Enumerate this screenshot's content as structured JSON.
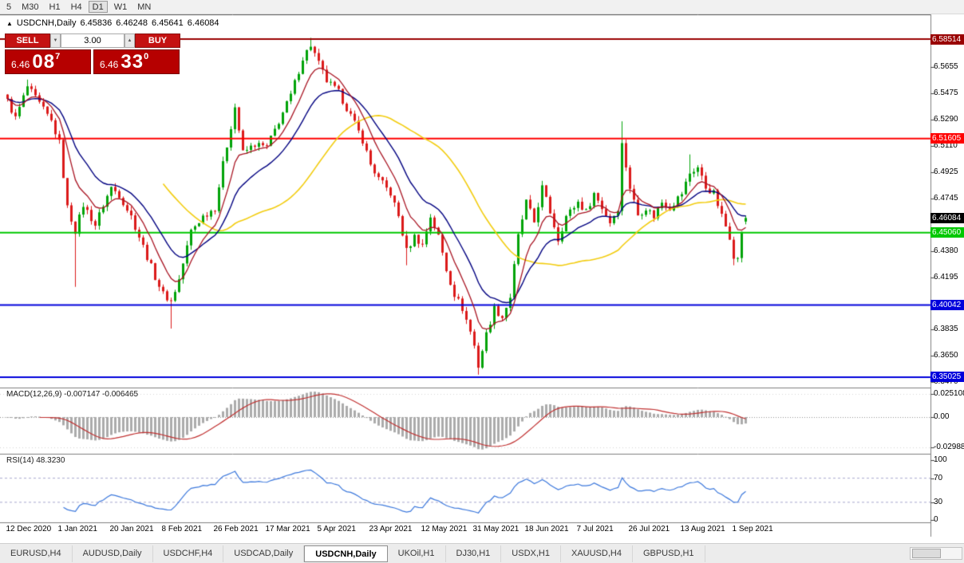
{
  "toolbar": {
    "timeframes": [
      "5",
      "M30",
      "H1",
      "H4",
      "D1",
      "W1",
      "MN"
    ],
    "active_timeframe": "D1"
  },
  "chart_header": {
    "collapse_icon": "▲",
    "symbol_label": "USDCNH,Daily",
    "open": "6.45836",
    "high": "6.46248",
    "low": "6.45641",
    "close": "6.46084"
  },
  "trade_panel": {
    "sell_label": "SELL",
    "buy_label": "BUY",
    "volume": "3.00",
    "spinner_down": "▼",
    "spinner_up": "▲",
    "sell_price": {
      "small": "6.46",
      "big": "08",
      "sup": "7"
    },
    "buy_price": {
      "small": "6.46",
      "big": "33",
      "sup": "0"
    }
  },
  "indicators": {
    "macd_label": "MACD(12,26,9) -0.007147 -0.006465",
    "macd_axis": [
      "0.025108",
      "0.00",
      "-0.029881"
    ],
    "rsi_label": "RSI(14) 48.3230",
    "rsi_axis": [
      "100",
      "70",
      "30",
      "0"
    ]
  },
  "date_axis": [
    "12 Dec 2020",
    "1 Jan 2021",
    "20 Jan 2021",
    "8 Feb 2021",
    "26 Feb 2021",
    "17 Mar 2021",
    "5 Apr 2021",
    "23 Apr 2021",
    "12 May 2021",
    "31 May 2021",
    "18 Jun 2021",
    "7 Jul 2021",
    "26 Jul 2021",
    "13 Aug 2021",
    "1 Sep 2021"
  ],
  "tabs": [
    {
      "label": "EURUSD,H4",
      "active": false
    },
    {
      "label": "AUDUSD,Daily",
      "active": false
    },
    {
      "label": "USDCHF,H4",
      "active": false
    },
    {
      "label": "USDCAD,Daily",
      "active": false
    },
    {
      "label": "USDCNH,Daily",
      "active": true
    },
    {
      "label": "UKOil,H1",
      "active": false
    },
    {
      "label": "DJ30,H1",
      "active": false
    },
    {
      "label": "USDX,H1",
      "active": false
    },
    {
      "label": "XAUUSD,H4",
      "active": false
    },
    {
      "label": "GBPUSD,H1",
      "active": false
    }
  ],
  "colors": {
    "up_candle": "#00A308",
    "down_candle": "#DB1A1A",
    "ma_fast": "#A81422",
    "ma_mid": "#000080",
    "ma_slow": "#F2CC0F",
    "macd_histogram": "#ABABAB",
    "macd_signal": "#C03030",
    "rsi_line": "#3C78DC",
    "rsi_level_dash": "#A6A6CE",
    "sell_buy_button": "#C41212",
    "price_box": "#B60000"
  },
  "chart_data": {
    "type": "candlestick",
    "symbol": "USDCNH",
    "timeframe": "Daily",
    "bar_count": 186,
    "bars_per_date_label": 13,
    "last_bar": {
      "open": 6.45836,
      "high": 6.46248,
      "low": 6.45641,
      "close": 6.46084
    },
    "price_anchors": [
      [
        0,
        6.542
      ],
      [
        2,
        6.53
      ],
      [
        5,
        6.552
      ],
      [
        8,
        6.54
      ],
      [
        11,
        6.528
      ],
      [
        13,
        6.513
      ],
      [
        15,
        6.468
      ],
      [
        17,
        6.452
      ],
      [
        19,
        6.47
      ],
      [
        22,
        6.456
      ],
      [
        24,
        6.47
      ],
      [
        26,
        6.482
      ],
      [
        28,
        6.477
      ],
      [
        31,
        6.462
      ],
      [
        34,
        6.441
      ],
      [
        37,
        6.42
      ],
      [
        39,
        6.408
      ],
      [
        41,
        6.403
      ],
      [
        43,
        6.418
      ],
      [
        46,
        6.452
      ],
      [
        49,
        6.462
      ],
      [
        52,
        6.468
      ],
      [
        54,
        6.498
      ],
      [
        57,
        6.538
      ],
      [
        59,
        6.506
      ],
      [
        62,
        6.512
      ],
      [
        65,
        6.51
      ],
      [
        68,
        6.528
      ],
      [
        71,
        6.546
      ],
      [
        74,
        6.572
      ],
      [
        76,
        6.581
      ],
      [
        78,
        6.568
      ],
      [
        80,
        6.556
      ],
      [
        83,
        6.548
      ],
      [
        86,
        6.532
      ],
      [
        89,
        6.515
      ],
      [
        91,
        6.498
      ],
      [
        93,
        6.488
      ],
      [
        96,
        6.478
      ],
      [
        98,
        6.462
      ],
      [
        100,
        6.438
      ],
      [
        102,
        6.448
      ],
      [
        104,
        6.442
      ],
      [
        106,
        6.462
      ],
      [
        108,
        6.448
      ],
      [
        110,
        6.425
      ],
      [
        112,
        6.408
      ],
      [
        114,
        6.398
      ],
      [
        116,
        6.382
      ],
      [
        117,
        6.372
      ],
      [
        118,
        6.358
      ],
      [
        120,
        6.38
      ],
      [
        122,
        6.398
      ],
      [
        124,
        6.392
      ],
      [
        126,
        6.406
      ],
      [
        128,
        6.448
      ],
      [
        130,
        6.472
      ],
      [
        132,
        6.458
      ],
      [
        134,
        6.482
      ],
      [
        136,
        6.465
      ],
      [
        138,
        6.446
      ],
      [
        140,
        6.462
      ],
      [
        143,
        6.472
      ],
      [
        145,
        6.465
      ],
      [
        147,
        6.478
      ],
      [
        149,
        6.468
      ],
      [
        151,
        6.458
      ],
      [
        153,
        6.468
      ],
      [
        154,
        6.512
      ],
      [
        156,
        6.482
      ],
      [
        158,
        6.463
      ],
      [
        160,
        6.468
      ],
      [
        162,
        6.462
      ],
      [
        164,
        6.472
      ],
      [
        166,
        6.468
      ],
      [
        169,
        6.478
      ],
      [
        171,
        6.492
      ],
      [
        173,
        6.496
      ],
      [
        175,
        6.482
      ],
      [
        177,
        6.478
      ],
      [
        179,
        6.462
      ],
      [
        181,
        6.448
      ],
      [
        182,
        6.435
      ],
      [
        183,
        6.432
      ],
      [
        184,
        6.452
      ],
      [
        185,
        6.46084
      ]
    ],
    "wick_high_overrides": {
      "5": 6.557,
      "76": 6.586,
      "154": 6.528,
      "171": 6.505
    },
    "wick_low_overrides": {
      "17": 6.413,
      "41": 6.384,
      "100": 6.428,
      "118": 6.352,
      "182": 6.428
    },
    "y_axis_ticks": [
      6.5655,
      6.5475,
      6.529,
      6.511,
      6.4925,
      6.4745,
      6.438,
      6.4195,
      6.3835,
      6.365,
      6.347
    ],
    "levels": [
      {
        "price": 6.58514,
        "label": "6.58514",
        "color": "#990000"
      },
      {
        "price": 6.51605,
        "label": "6.51605",
        "color": "#FF0000"
      },
      {
        "price": 6.4506,
        "label": "6.45060",
        "color": "#00C800"
      },
      {
        "price": 6.40042,
        "label": "6.40042",
        "color": "#0000DC"
      },
      {
        "price": 6.35025,
        "label": "6.35025",
        "color": "#0000DC"
      }
    ],
    "current_price": {
      "price": 6.46084,
      "label": "6.46084",
      "color": "#000000"
    },
    "moving_averages": [
      {
        "period": 8,
        "type": "ema",
        "color": "#A81422"
      },
      {
        "period": 18,
        "type": "ema",
        "color": "#000080"
      },
      {
        "period": 40,
        "type": "sma",
        "color": "#F2CC0F"
      }
    ],
    "macd": {
      "fast": 12,
      "slow": 26,
      "signal": 9,
      "main_value": -0.007147,
      "signal_value": -0.006465
    },
    "rsi": {
      "period": 14,
      "value": 48.323,
      "levels": [
        70,
        30
      ]
    }
  }
}
